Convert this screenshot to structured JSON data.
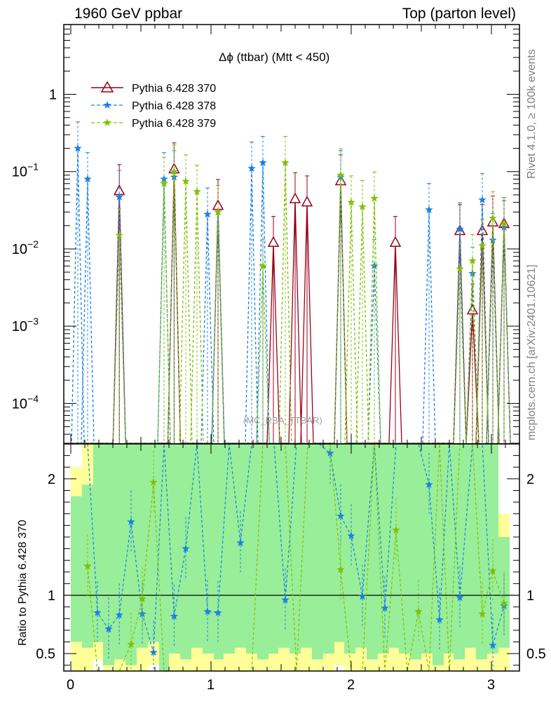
{
  "header": {
    "left": "1960 GeV ppbar",
    "right": "Top (parton level)"
  },
  "side_text": {
    "rivet": "Rivet 4.1.0, ≥ 100k events",
    "mcplots": "mcplots.cern.ch [arXiv:2401.10621]"
  },
  "ratio_ylabel": "Ratio to Pythia 6.428 370",
  "chart_data": {
    "type": "line",
    "title": "Δϕ (ttbar) (Mtt < 450)",
    "watermark": "(MC_RBA_TTBAR)",
    "xlabel": "",
    "xlim": [
      -0.05,
      3.2
    ],
    "ylim": [
      3e-05,
      8
    ],
    "yscale": "log",
    "x_ticks": [
      "0",
      "1",
      "2",
      "3"
    ],
    "y_ticks": [
      "1",
      "10^-1",
      "10^-2",
      "10^-3",
      "10^-4"
    ],
    "ratio_ylim": [
      0.35,
      2.3
    ],
    "ratio_ticks": [
      "0.5",
      "1",
      "2"
    ],
    "legend_position": "top-left",
    "series": [
      {
        "name": "Pythia 6.428 370",
        "color": "#990019",
        "marker": "triangle-open",
        "x": [
          0.346,
          0.737,
          1.05,
          1.445,
          1.6,
          1.685,
          1.925,
          2.315,
          2.775,
          2.865,
          2.935,
          3.01,
          3.09
        ],
        "y": [
          0.056,
          0.107,
          0.036,
          0.012,
          0.044,
          0.04,
          0.075,
          0.012,
          0.017,
          0.0016,
          0.017,
          0.022,
          0.021
        ]
      },
      {
        "name": "Pythia 6.428 378",
        "color": "#1a80e6",
        "marker": "star",
        "x": [
          0.05,
          0.12,
          0.346,
          0.665,
          0.737,
          0.975,
          1.05,
          1.29,
          1.37,
          1.925,
          2.165,
          2.555,
          2.775,
          2.865,
          2.935,
          3.01,
          3.09
        ],
        "y": [
          0.2,
          0.08,
          0.047,
          0.08,
          0.085,
          0.028,
          0.03,
          0.11,
          0.13,
          0.085,
          0.006,
          0.032,
          0.018,
          0.0048,
          0.043,
          0.013,
          0.019
        ],
        "ratio_x": [
          0.05,
          0.12,
          0.19,
          0.27,
          0.346,
          0.43,
          0.51,
          0.59,
          0.665,
          0.737,
          0.82,
          0.9,
          0.975,
          1.05,
          1.13,
          1.21,
          1.29,
          1.37,
          1.45,
          1.53,
          1.61,
          1.69,
          1.77,
          1.85,
          1.925,
          2.0,
          2.08,
          2.165,
          2.24,
          2.32,
          2.4,
          2.48,
          2.555,
          2.63,
          2.7,
          2.775,
          2.865,
          2.935,
          3.01,
          3.09
        ],
        "ratio_y": [
          2.5,
          2.4,
          0.85,
          0.71,
          0.83,
          1.63,
          0.84,
          0.51,
          2.6,
          0.82,
          1.4,
          2.5,
          0.86,
          0.85,
          2.6,
          1.45,
          2.5,
          2.6,
          2.6,
          0.96,
          2.6,
          2.6,
          2.6,
          2.22,
          1.68,
          1.51,
          0.99,
          2.6,
          0.89,
          2.6,
          2.6,
          2.6,
          1.95,
          0.79,
          2.6,
          0.98,
          2.6,
          2.6,
          0.57,
          0.91
        ]
      },
      {
        "name": "Pythia 6.428 379",
        "color": "#80c000",
        "marker": "star",
        "x": [
          0.346,
          0.665,
          0.737,
          0.82,
          0.9,
          1.05,
          1.37,
          1.53,
          1.925,
          2.0,
          2.08,
          2.165,
          2.775,
          2.865,
          2.935,
          3.01,
          3.09
        ],
        "y": [
          0.015,
          0.07,
          0.1,
          0.075,
          0.055,
          0.03,
          0.006,
          0.13,
          0.09,
          0.04,
          0.035,
          0.045,
          0.0055,
          0.007,
          0.011,
          0.025,
          0.021
        ],
        "ratio_x": [
          0.12,
          0.19,
          0.27,
          0.346,
          0.43,
          0.51,
          0.59,
          0.665,
          0.737,
          0.82,
          0.9,
          0.975,
          1.05,
          1.13,
          1.21,
          1.29,
          1.37,
          1.45,
          1.53,
          1.61,
          1.69,
          1.77,
          1.85,
          1.925,
          2.0,
          2.08,
          2.165,
          2.24,
          2.32,
          2.4,
          2.48,
          2.555,
          2.63,
          2.7,
          2.775,
          2.865,
          2.935,
          3.01,
          3.09
        ],
        "ratio_y": [
          1.25,
          0.2,
          0.2,
          0.27,
          0.58,
          0.97,
          1.97,
          0.2,
          0.2,
          0.2,
          0.2,
          0.2,
          0.2,
          0.2,
          0.2,
          0.2,
          2.6,
          2.6,
          2.6,
          0.2,
          2.6,
          2.6,
          2.6,
          1.22,
          0.2,
          0.2,
          2.6,
          0.2,
          1.56,
          0.2,
          0.86,
          0.2,
          2.6,
          0.2,
          2.6,
          2.6,
          0.84,
          1.21,
          0.93
        ]
      }
    ],
    "ratio_bands": {
      "edges": [
        0.0,
        0.08,
        0.16,
        0.23,
        0.31,
        0.39,
        0.47,
        0.55,
        0.63,
        0.7,
        0.78,
        0.86,
        0.94,
        1.02,
        1.09,
        1.17,
        1.25,
        1.33,
        1.41,
        1.48,
        1.56,
        1.64,
        1.72,
        1.8,
        1.88,
        1.95,
        2.03,
        2.11,
        2.19,
        2.27,
        2.34,
        2.42,
        2.5,
        2.58,
        2.66,
        2.73,
        2.81,
        2.89,
        2.97,
        3.05,
        3.13
      ],
      "green_lo": [
        0.6,
        0.55,
        0.6,
        0.4,
        0.45,
        0.4,
        0.55,
        0.6,
        0.35,
        0.5,
        0.45,
        0.55,
        0.5,
        0.45,
        0.5,
        0.55,
        0.5,
        0.45,
        0.5,
        0.55,
        0.5,
        0.55,
        0.45,
        0.5,
        0.6,
        0.5,
        0.55,
        0.45,
        0.5,
        0.55,
        0.5,
        0.45,
        0.5,
        0.4,
        0.5,
        0.45,
        0.55,
        0.45,
        0.5,
        0.55,
        0.6
      ],
      "green_hi": [
        1.85,
        1.95,
        2.3,
        2.3,
        2.3,
        2.3,
        2.3,
        2.3,
        2.3,
        2.3,
        2.3,
        2.3,
        2.3,
        2.3,
        2.3,
        2.3,
        2.3,
        2.3,
        2.3,
        2.3,
        2.3,
        2.3,
        2.3,
        2.3,
        2.3,
        2.3,
        2.3,
        2.3,
        2.3,
        2.3,
        2.3,
        2.3,
        2.3,
        2.3,
        2.3,
        2.3,
        2.3,
        2.3,
        2.3,
        1.5,
        1.5
      ],
      "yellow_lo": [
        0.35,
        0.35,
        0.45,
        0.35,
        0.35,
        0.35,
        0.35,
        0.4,
        0.35,
        0.35,
        0.35,
        0.35,
        0.35,
        0.35,
        0.35,
        0.35,
        0.35,
        0.35,
        0.35,
        0.35,
        0.35,
        0.35,
        0.35,
        0.35,
        0.4,
        0.35,
        0.35,
        0.35,
        0.35,
        0.35,
        0.35,
        0.35,
        0.35,
        0.35,
        0.35,
        0.35,
        0.35,
        0.35,
        0.35,
        0.35,
        0.35
      ],
      "yellow_hi": [
        2.1,
        2.3,
        2.3,
        2.3,
        2.3,
        2.3,
        2.3,
        2.3,
        2.3,
        2.3,
        2.3,
        2.3,
        2.3,
        2.3,
        2.3,
        2.3,
        2.3,
        2.3,
        2.3,
        2.3,
        2.3,
        2.3,
        2.3,
        2.3,
        2.3,
        2.3,
        2.3,
        2.3,
        2.3,
        2.3,
        2.3,
        2.3,
        2.3,
        2.3,
        2.3,
        2.3,
        2.3,
        2.3,
        2.3,
        1.7,
        1.7
      ]
    }
  }
}
